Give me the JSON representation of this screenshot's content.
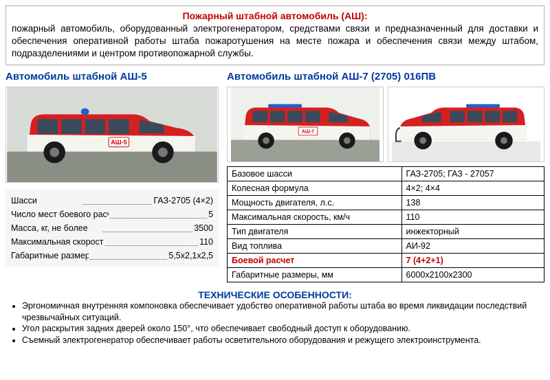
{
  "header": {
    "title": "Пожарный штабной автомобиль (АШ):",
    "text": "пожарный автомобиль, оборудованный электрогенератором, средствами связи и предназначенный для доставки и обеспечения оперативной работы штаба пожаротушения на месте пожара и обеспечения связи между штабом, подразделениями и центром противопожарной службы."
  },
  "colors": {
    "accent_red": "#c00000",
    "accent_blue": "#003a9e",
    "vehicle_red": "#d62020",
    "vehicle_white": "#f5f5f0"
  },
  "left": {
    "title": "Автомобиль штабной АШ-5",
    "vehicle_label": "АШ-5",
    "specs": [
      {
        "label": "Шасси",
        "value": "ГАЗ-2705 (4×2)"
      },
      {
        "label": "Число мест боевого расчета",
        "value": "5"
      },
      {
        "label": "Масса, кг, не более",
        "value": "3500"
      },
      {
        "label": "Максимальная скорость, км/ч",
        "value": "110"
      },
      {
        "label": "Габаритные размеры, м",
        "value": "5,5х2,1х2,5"
      }
    ]
  },
  "right": {
    "title": "Автомобиль штабной АШ-7 (2705) 016ПВ",
    "vehicle_label": "АШ-7",
    "table": {
      "rows": [
        {
          "label": "Базовое шасси",
          "value": "ГАЗ-2705; ГАЗ - 27057",
          "highlight": false
        },
        {
          "label": "Колесная формула",
          "value": "4×2; 4×4",
          "highlight": false
        },
        {
          "label": "Мощность двигателя, л.с.",
          "value": "138",
          "highlight": false
        },
        {
          "label": "Максимальная скорость, км/ч",
          "value": "110",
          "highlight": false
        },
        {
          "label": "Тип двигателя",
          "value": "инжекторный",
          "highlight": false
        },
        {
          "label": "Вид топлива",
          "value": "АИ-92",
          "highlight": false
        },
        {
          "label": "Боевой расчет",
          "value": "7 (4+2+1)",
          "highlight": true
        },
        {
          "label": "Габаритные размеры, мм",
          "value": "6000х2100х2300",
          "highlight": false
        }
      ]
    }
  },
  "features": {
    "title": "ТЕХНИЧЕСКИЕ ОСОБЕННОСТИ:",
    "items": [
      "Эргономичная внутренняя компоновка обеспечивает удобство оперативной работы штаба во время ликвидации последствий чрезвычайных ситуаций.",
      "Угол раскрытия задних дверей около 150°, что обеспечивает свободный доступ к оборудованию.",
      "Съемный электрогенератор обеспечивает работы осветительного оборудования и режущего электроинструмента."
    ]
  }
}
